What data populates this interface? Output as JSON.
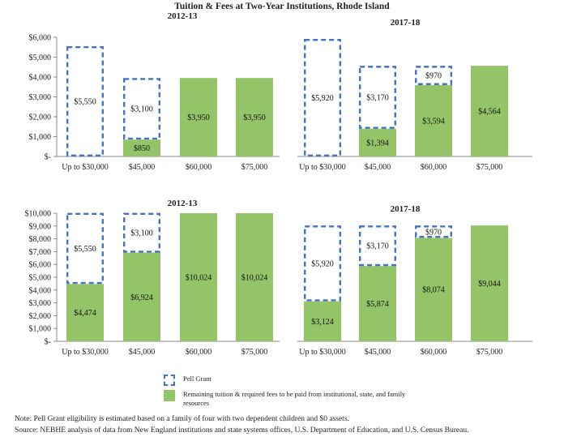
{
  "title": "Tuition & Fees at Two-Year Institutions, Rhode Island",
  "legend": {
    "pell": "Pell Grant",
    "remaining": "Remaining tuition & required fees to be paid from institutional, state, and family resources"
  },
  "notes": {
    "note": "Note: Pell Grant eligibility is estimated based on a family of four with two dependent children and $0 assets.",
    "source": "Source: NEBHE analysis of data from New England institutions and state systems offices, U.S. Department of Education, and U.S. Census Bureau."
  },
  "colors": {
    "pell_border": "#4472c4",
    "remaining_fill": "#93c468"
  },
  "chart_data": [
    {
      "type": "bar",
      "stacked": true,
      "title": "2012-13",
      "categories": [
        "Up to $30,000",
        "$45,000",
        "$60,000",
        "$75,000"
      ],
      "series": [
        {
          "name": "Remaining tuition & required fees",
          "values": [
            0,
            850,
            3950,
            3950
          ],
          "labels": [
            "",
            "$850",
            "$3,950",
            "$3,950"
          ]
        },
        {
          "name": "Pell Grant",
          "values": [
            5550,
            3100,
            0,
            0
          ],
          "labels": [
            "$5,550",
            "$3,100",
            "",
            ""
          ]
        }
      ],
      "ylim": [
        0,
        6000
      ],
      "yticks": [
        "$-",
        "$1,000",
        "$2,000",
        "$3,000",
        "$4,000",
        "$5,000",
        "$6,000"
      ]
    },
    {
      "type": "bar",
      "stacked": true,
      "title": "2017-18",
      "categories": [
        "Up to $30,000",
        "$45,000",
        "$60,000",
        "$75,000"
      ],
      "series": [
        {
          "name": "Remaining tuition & required fees",
          "values": [
            0,
            1394,
            3594,
            4564
          ],
          "labels": [
            "",
            "$1,394",
            "$3,594",
            "$4,564"
          ]
        },
        {
          "name": "Pell Grant",
          "values": [
            5920,
            3170,
            970,
            0
          ],
          "labels": [
            "$5,920",
            "$3,170",
            "$970",
            ""
          ]
        }
      ],
      "ylim": [
        0,
        6000
      ],
      "yticks": []
    },
    {
      "type": "bar",
      "stacked": true,
      "title": "2012-13",
      "categories": [
        "Up to $30,000",
        "$45,000",
        "$60,000",
        "$75,000"
      ],
      "series": [
        {
          "name": "Remaining tuition & required fees",
          "values": [
            4474,
            6924,
            10024,
            10024
          ],
          "labels": [
            "$4,474",
            "$6,924",
            "$10,024",
            "$10,024"
          ]
        },
        {
          "name": "Pell Grant",
          "values": [
            5550,
            3100,
            0,
            0
          ],
          "labels": [
            "$5,550",
            "$3,100",
            "",
            ""
          ]
        }
      ],
      "ylim": [
        0,
        10000
      ],
      "yticks": [
        "$-",
        "$1,000",
        "$2,000",
        "$3,000",
        "$4,000",
        "$5,000",
        "$6,000",
        "$7,000",
        "$8,000",
        "$9,000",
        "$10,000"
      ]
    },
    {
      "type": "bar",
      "stacked": true,
      "title": "2017-18",
      "categories": [
        "Up to $30,000",
        "$45,000",
        "$60,000",
        "$75,000"
      ],
      "series": [
        {
          "name": "Remaining tuition & required fees",
          "values": [
            3124,
            5874,
            8074,
            9044
          ],
          "labels": [
            "$3,124",
            "$5,874",
            "$8,074",
            "$9,044"
          ]
        },
        {
          "name": "Pell Grant",
          "values": [
            5920,
            3170,
            970,
            0
          ],
          "labels": [
            "$5,920",
            "$3,170",
            "$970",
            ""
          ]
        }
      ],
      "ylim": [
        0,
        10000
      ],
      "yticks": []
    }
  ]
}
